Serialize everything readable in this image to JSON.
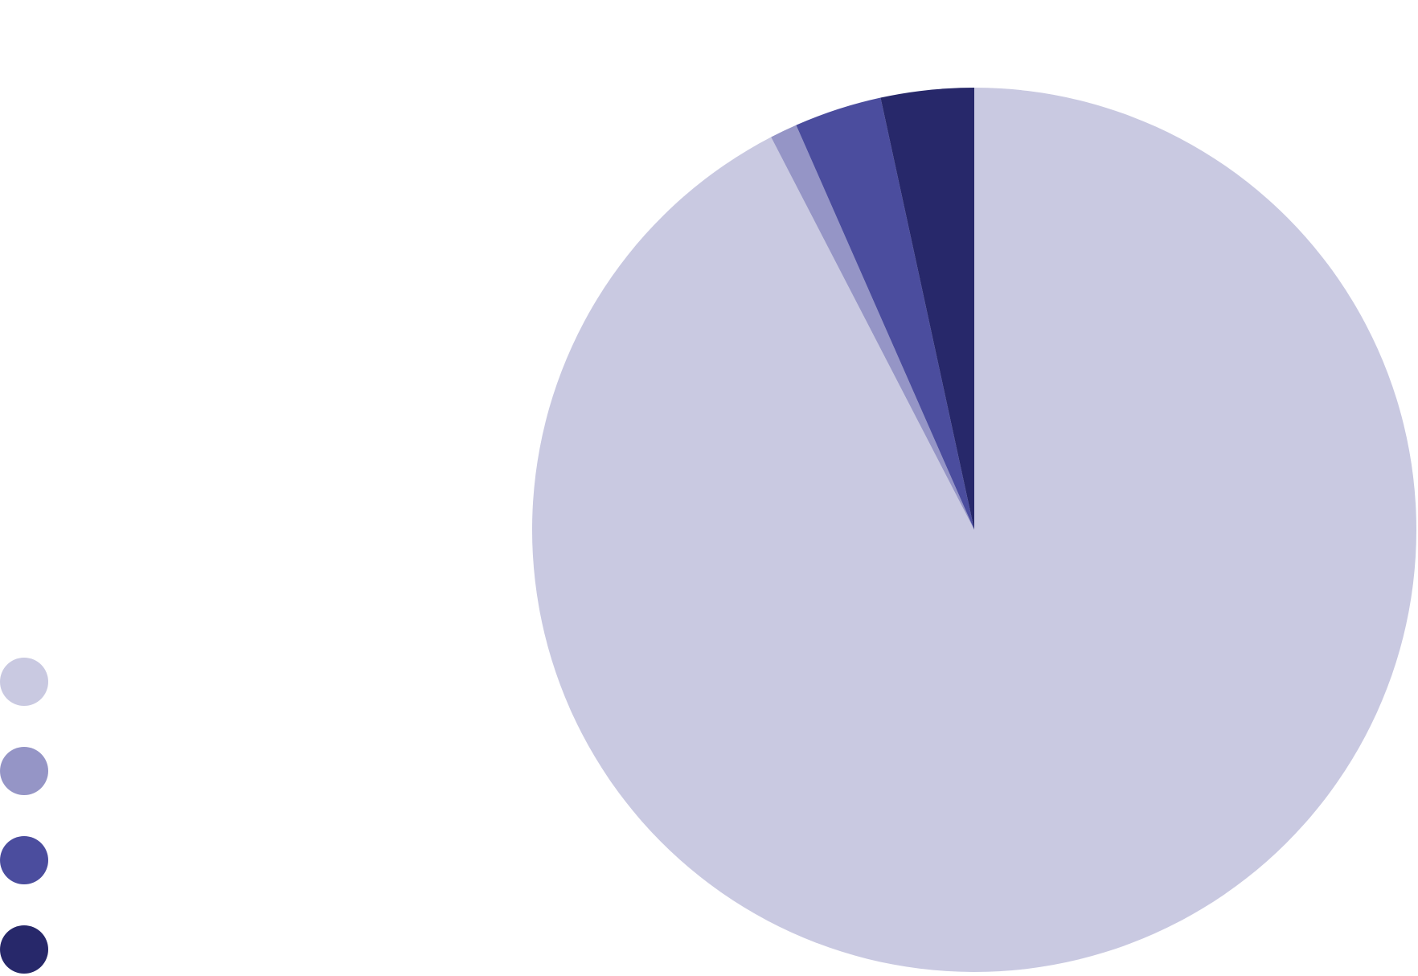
{
  "chart_data": {
    "type": "pie",
    "title": "",
    "start_angle_deg": 0,
    "direction": "clockwise",
    "legend_position": "bottom-left",
    "slices": [
      {
        "label": "",
        "value": 92.4,
        "color": "#c9c9e1"
      },
      {
        "label": "",
        "value": 1.0,
        "color": "#9595c6"
      },
      {
        "label": "",
        "value": 3.2,
        "color": "#4b4d9e"
      },
      {
        "label": "",
        "value": 3.4,
        "color": "#27286a"
      }
    ]
  }
}
